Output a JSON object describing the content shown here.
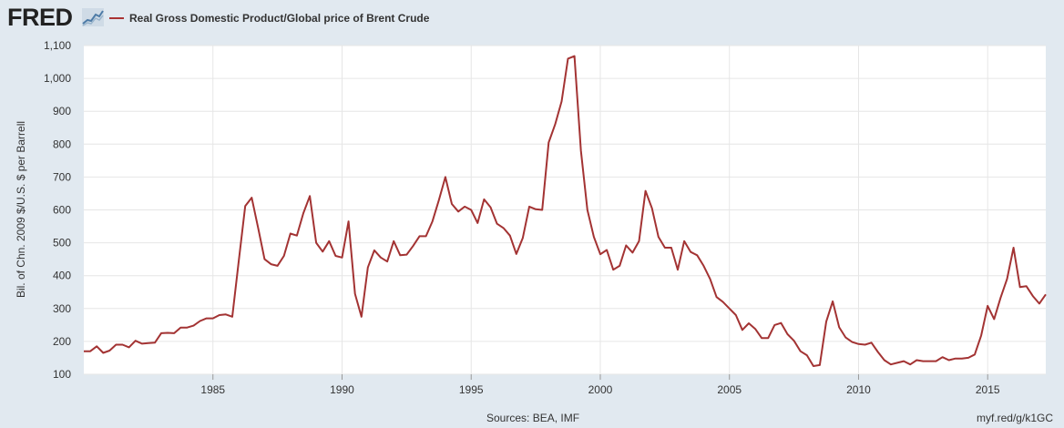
{
  "header": {
    "logo_text": "FRED",
    "legend_label": "Real Gross Domestic Product/Global price of Brent Crude",
    "series_color": "#a33333"
  },
  "footer": {
    "source": "Sources: BEA, IMF",
    "url": "myf.red/g/k1GC"
  },
  "chart_data": {
    "type": "line",
    "title": "",
    "ylabel": "Bil. of Chn. 2009 $/U.S. $ per Barrell",
    "xlabel": "",
    "xlim": [
      1980.0,
      2017.25
    ],
    "ylim": [
      100,
      1100
    ],
    "yticks": [
      100,
      200,
      300,
      400,
      500,
      600,
      700,
      800,
      900,
      1000,
      1100
    ],
    "ytick_labels": [
      "100",
      "200",
      "300",
      "400",
      "500",
      "600",
      "700",
      "800",
      "900",
      "1,000",
      "1,100"
    ],
    "xticks": [
      1985,
      1990,
      1995,
      2000,
      2005,
      2010,
      2015
    ],
    "xtick_labels": [
      "1985",
      "1990",
      "1995",
      "2000",
      "2005",
      "2010",
      "2015"
    ],
    "grid": true,
    "legend": "top-left",
    "series": [
      {
        "name": "Real Gross Domestic Product/Global price of Brent Crude",
        "color": "#a33333",
        "x": [
          1980.0,
          1980.25,
          1980.5,
          1980.75,
          1981.0,
          1981.25,
          1981.5,
          1981.75,
          1982.0,
          1982.25,
          1982.5,
          1982.75,
          1983.0,
          1983.25,
          1983.5,
          1983.75,
          1984.0,
          1984.25,
          1984.5,
          1984.75,
          1985.0,
          1985.25,
          1985.5,
          1985.75,
          1986.0,
          1986.25,
          1986.5,
          1986.75,
          1987.0,
          1987.25,
          1987.5,
          1987.75,
          1988.0,
          1988.25,
          1988.5,
          1988.75,
          1989.0,
          1989.25,
          1989.5,
          1989.75,
          1990.0,
          1990.25,
          1990.5,
          1990.75,
          1991.0,
          1991.25,
          1991.5,
          1991.75,
          1992.0,
          1992.25,
          1992.5,
          1992.75,
          1993.0,
          1993.25,
          1993.5,
          1993.75,
          1994.0,
          1994.25,
          1994.5,
          1994.75,
          1995.0,
          1995.25,
          1995.5,
          1995.75,
          1996.0,
          1996.25,
          1996.5,
          1996.75,
          1997.0,
          1997.25,
          1997.5,
          1997.75,
          1998.0,
          1998.25,
          1998.5,
          1998.75,
          1999.0,
          1999.25,
          1999.5,
          1999.75,
          2000.0,
          2000.25,
          2000.5,
          2000.75,
          2001.0,
          2001.25,
          2001.5,
          2001.75,
          2002.0,
          2002.25,
          2002.5,
          2002.75,
          2003.0,
          2003.25,
          2003.5,
          2003.75,
          2004.0,
          2004.25,
          2004.5,
          2004.75,
          2005.0,
          2005.25,
          2005.5,
          2005.75,
          2006.0,
          2006.25,
          2006.5,
          2006.75,
          2007.0,
          2007.25,
          2007.5,
          2007.75,
          2008.0,
          2008.25,
          2008.5,
          2008.75,
          2009.0,
          2009.25,
          2009.5,
          2009.75,
          2010.0,
          2010.25,
          2010.5,
          2010.75,
          2011.0,
          2011.25,
          2011.5,
          2011.75,
          2012.0,
          2012.25,
          2012.5,
          2012.75,
          2013.0,
          2013.25,
          2013.5,
          2013.75,
          2014.0,
          2014.25,
          2014.5,
          2014.75,
          2015.0,
          2015.25,
          2015.5,
          2015.75,
          2016.0,
          2016.25,
          2016.5,
          2016.75,
          2017.0,
          2017.25
        ],
        "y": [
          170,
          170,
          185,
          165,
          172,
          190,
          190,
          182,
          202,
          193,
          195,
          196,
          225,
          226,
          225,
          242,
          242,
          248,
          262,
          270,
          270,
          280,
          282,
          275,
          445,
          612,
          637,
          545,
          450,
          435,
          430,
          460,
          528,
          522,
          590,
          642,
          500,
          473,
          505,
          460,
          455,
          565,
          345,
          275,
          425,
          477,
          455,
          443,
          505,
          462,
          464,
          490,
          520,
          520,
          565,
          630,
          700,
          618,
          595,
          610,
          600,
          560,
          632,
          608,
          558,
          545,
          522,
          466,
          515,
          610,
          602,
          600,
          805,
          860,
          930,
          1060,
          1068,
          780,
          600,
          518,
          465,
          478,
          418,
          430,
          492,
          470,
          505,
          658,
          605,
          518,
          485,
          485,
          418,
          505,
          472,
          462,
          430,
          390,
          335,
          320,
          300,
          280,
          235,
          255,
          238,
          210,
          210,
          250,
          256,
          222,
          202,
          170,
          158,
          125,
          128,
          260,
          322,
          243,
          212,
          198,
          192,
          190,
          196,
          168,
          143,
          130,
          135,
          140,
          130,
          143,
          140,
          140,
          140,
          152,
          143,
          148,
          148,
          150,
          160,
          218,
          308,
          268,
          333,
          390,
          485,
          365,
          368,
          338,
          315,
          343
        ]
      }
    ]
  }
}
